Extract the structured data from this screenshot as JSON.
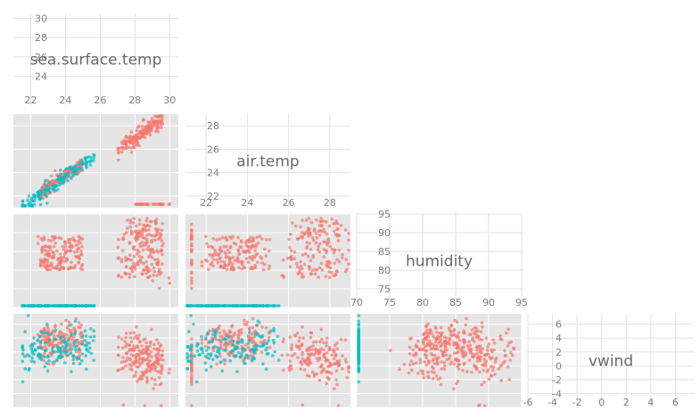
{
  "chart_data": {
    "type": "scatter",
    "subtype": "scatterplot-matrix",
    "variables": [
      {
        "name": "sea.surface.temp",
        "range": [
          21,
          30.5
        ],
        "ticks": [
          22,
          24,
          26,
          28,
          30
        ]
      },
      {
        "name": "air.temp",
        "range": [
          21,
          29
        ],
        "ticks": [
          22,
          24,
          26,
          28
        ]
      },
      {
        "name": "humidity",
        "range": [
          70,
          95
        ],
        "ticks": [
          70,
          75,
          80,
          85,
          90,
          95
        ]
      },
      {
        "name": "vwind",
        "range": [
          -6,
          7.5
        ],
        "ticks": [
          -6,
          -4,
          -2,
          0,
          2,
          4,
          6
        ]
      }
    ],
    "series": [
      {
        "color": "#F8766D"
      },
      {
        "color": "#00BFC4"
      }
    ],
    "grid": true,
    "legend": "none"
  }
}
